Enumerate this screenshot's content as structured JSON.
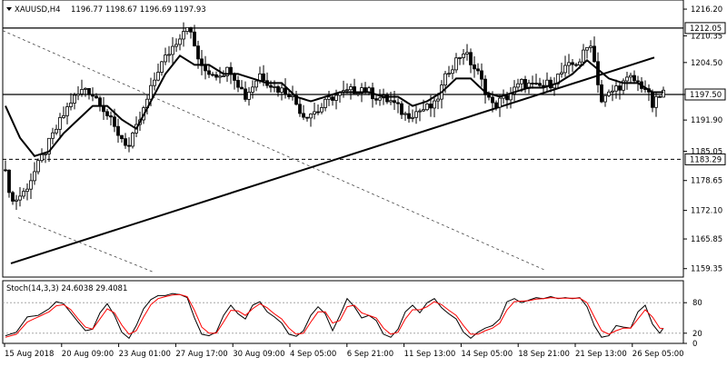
{
  "header": {
    "symbol": "XAUUSD,H4",
    "ohlc": "1196.77 1198.67 1196.69 1197.93"
  },
  "stoch_label": "Stoch(14,3,3) 24.6038 29.4081",
  "chart_data": [
    {
      "type": "candlestick",
      "title": "XAUUSD,H4",
      "ylim": [
        1157.5,
        1218.2
      ],
      "y_ticks": [
        1216.2,
        1210.35,
        1204.5,
        1197.5,
        1191.9,
        1185.05,
        1178.65,
        1172.1,
        1165.85,
        1159.35
      ],
      "price_tags": [
        {
          "value": 1212.05,
          "label": "1212.05",
          "style": "solid"
        },
        {
          "value": 1197.5,
          "label": "1197.50",
          "style": "solid"
        },
        {
          "value": 1183.29,
          "label": "1183.29",
          "style": "dashed"
        }
      ],
      "x_labels": [
        "15 Aug 2018",
        "20 Aug 09:00",
        "23 Aug 01:00",
        "27 Aug 17:00",
        "30 Aug 09:00",
        "4 Sep 05:00",
        "6 Sep 21:00",
        "11 Sep 13:00",
        "14 Sep 05:00",
        "18 Sep 21:00",
        "21 Sep 13:00",
        "26 Sep 05:00"
      ],
      "close_anchors": [
        [
          0,
          1180
        ],
        [
          2,
          1174
        ],
        [
          5,
          1176
        ],
        [
          9,
          1182
        ],
        [
          14,
          1190
        ],
        [
          18,
          1196
        ],
        [
          22,
          1199
        ],
        [
          26,
          1196
        ],
        [
          30,
          1190
        ],
        [
          34,
          1186
        ],
        [
          38,
          1194
        ],
        [
          42,
          1203
        ],
        [
          46,
          1208
        ],
        [
          50,
          1213
        ],
        [
          54,
          1203
        ],
        [
          58,
          1202
        ],
        [
          62,
          1203
        ],
        [
          66,
          1197
        ],
        [
          70,
          1202
        ],
        [
          74,
          1199
        ],
        [
          78,
          1198
        ],
        [
          82,
          1193
        ],
        [
          86,
          1194
        ],
        [
          90,
          1197
        ],
        [
          94,
          1198
        ],
        [
          98,
          1199
        ],
        [
          102,
          1197
        ],
        [
          106,
          1196
        ],
        [
          110,
          1193
        ],
        [
          114,
          1194
        ],
        [
          118,
          1195
        ],
        [
          122,
          1203
        ],
        [
          126,
          1207
        ],
        [
          130,
          1202
        ],
        [
          134,
          1195
        ],
        [
          138,
          1197
        ],
        [
          142,
          1200
        ],
        [
          146,
          1199
        ],
        [
          150,
          1200
        ],
        [
          154,
          1203
        ],
        [
          158,
          1205
        ],
        [
          161,
          1209
        ],
        [
          164,
          1196
        ],
        [
          168,
          1199
        ],
        [
          172,
          1201
        ],
        [
          176,
          1199
        ],
        [
          178,
          1195
        ],
        [
          181,
          1198
        ]
      ],
      "ma_anchors": [
        [
          0,
          1195
        ],
        [
          4,
          1188
        ],
        [
          8,
          1184
        ],
        [
          12,
          1185
        ],
        [
          16,
          1189
        ],
        [
          20,
          1192
        ],
        [
          24,
          1195
        ],
        [
          28,
          1195
        ],
        [
          32,
          1192
        ],
        [
          36,
          1190
        ],
        [
          40,
          1196
        ],
        [
          44,
          1202
        ],
        [
          48,
          1206
        ],
        [
          52,
          1204
        ],
        [
          56,
          1204
        ],
        [
          60,
          1202
        ],
        [
          64,
          1202
        ],
        [
          68,
          1201
        ],
        [
          72,
          1200
        ],
        [
          76,
          1200
        ],
        [
          80,
          1197
        ],
        [
          84,
          1196
        ],
        [
          88,
          1197
        ],
        [
          92,
          1198
        ],
        [
          96,
          1198
        ],
        [
          100,
          1198
        ],
        [
          104,
          1197
        ],
        [
          108,
          1197
        ],
        [
          112,
          1195
        ],
        [
          116,
          1196
        ],
        [
          120,
          1198
        ],
        [
          124,
          1201
        ],
        [
          128,
          1201
        ],
        [
          132,
          1198
        ],
        [
          136,
          1197
        ],
        [
          140,
          1198
        ],
        [
          144,
          1199
        ],
        [
          148,
          1199
        ],
        [
          152,
          1200
        ],
        [
          156,
          1202
        ],
        [
          160,
          1205
        ],
        [
          163,
          1203
        ],
        [
          166,
          1201
        ],
        [
          170,
          1200
        ],
        [
          174,
          1200
        ],
        [
          178,
          1198
        ],
        [
          181,
          1198
        ]
      ]
    },
    {
      "type": "line",
      "title": "Stoch(14,3,3)",
      "ylim": [
        0,
        100
      ],
      "y_ticks": [
        "80",
        "20",
        "0"
      ],
      "levels": [
        80,
        20
      ],
      "series": [
        {
          "name": "main",
          "color": "#000000",
          "anchors": [
            [
              0,
              15
            ],
            [
              3,
              22
            ],
            [
              6,
              52
            ],
            [
              9,
              55
            ],
            [
              12,
              68
            ],
            [
              14,
              82
            ],
            [
              16,
              78
            ],
            [
              18,
              60
            ],
            [
              20,
              42
            ],
            [
              22,
              25
            ],
            [
              24,
              28
            ],
            [
              26,
              60
            ],
            [
              28,
              78
            ],
            [
              30,
              55
            ],
            [
              32,
              22
            ],
            [
              34,
              10
            ],
            [
              36,
              35
            ],
            [
              38,
              68
            ],
            [
              40,
              86
            ],
            [
              42,
              94
            ],
            [
              44,
              94
            ],
            [
              46,
              98
            ],
            [
              48,
              96
            ],
            [
              50,
              90
            ],
            [
              52,
              50
            ],
            [
              54,
              18
            ],
            [
              56,
              15
            ],
            [
              58,
              22
            ],
            [
              60,
              55
            ],
            [
              62,
              75
            ],
            [
              64,
              58
            ],
            [
              66,
              48
            ],
            [
              68,
              75
            ],
            [
              70,
              82
            ],
            [
              72,
              62
            ],
            [
              74,
              52
            ],
            [
              76,
              40
            ],
            [
              78,
              18
            ],
            [
              80,
              14
            ],
            [
              82,
              25
            ],
            [
              84,
              55
            ],
            [
              86,
              72
            ],
            [
              88,
              58
            ],
            [
              90,
              25
            ],
            [
              92,
              55
            ],
            [
              94,
              88
            ],
            [
              96,
              72
            ],
            [
              98,
              50
            ],
            [
              100,
              55
            ],
            [
              102,
              45
            ],
            [
              104,
              18
            ],
            [
              106,
              12
            ],
            [
              108,
              28
            ],
            [
              110,
              62
            ],
            [
              112,
              75
            ],
            [
              114,
              60
            ],
            [
              116,
              80
            ],
            [
              118,
              88
            ],
            [
              120,
              70
            ],
            [
              122,
              58
            ],
            [
              124,
              48
            ],
            [
              126,
              22
            ],
            [
              128,
              10
            ],
            [
              130,
              22
            ],
            [
              132,
              30
            ],
            [
              134,
              35
            ],
            [
              136,
              48
            ],
            [
              138,
              82
            ],
            [
              140,
              88
            ],
            [
              142,
              80
            ],
            [
              144,
              85
            ],
            [
              146,
              90
            ],
            [
              148,
              88
            ],
            [
              150,
              92
            ],
            [
              152,
              88
            ],
            [
              154,
              90
            ],
            [
              156,
              88
            ],
            [
              158,
              90
            ],
            [
              160,
              72
            ],
            [
              162,
              35
            ],
            [
              164,
              12
            ],
            [
              166,
              15
            ],
            [
              168,
              35
            ],
            [
              170,
              32
            ],
            [
              172,
              30
            ],
            [
              174,
              62
            ],
            [
              176,
              75
            ],
            [
              178,
              38
            ],
            [
              180,
              20
            ],
            [
              181,
              30
            ]
          ]
        },
        {
          "name": "signal",
          "color": "#ff0000",
          "anchors": [
            [
              0,
              12
            ],
            [
              3,
              18
            ],
            [
              6,
              42
            ],
            [
              9,
              52
            ],
            [
              12,
              62
            ],
            [
              14,
              74
            ],
            [
              16,
              76
            ],
            [
              18,
              66
            ],
            [
              20,
              48
            ],
            [
              22,
              32
            ],
            [
              24,
              28
            ],
            [
              26,
              48
            ],
            [
              28,
              68
            ],
            [
              30,
              60
            ],
            [
              32,
              36
            ],
            [
              34,
              18
            ],
            [
              36,
              25
            ],
            [
              38,
              52
            ],
            [
              40,
              76
            ],
            [
              42,
              88
            ],
            [
              44,
              92
            ],
            [
              46,
              95
            ],
            [
              48,
              96
            ],
            [
              50,
              92
            ],
            [
              52,
              65
            ],
            [
              54,
              32
            ],
            [
              56,
              20
            ],
            [
              58,
              20
            ],
            [
              60,
              42
            ],
            [
              62,
              65
            ],
            [
              64,
              64
            ],
            [
              66,
              55
            ],
            [
              68,
              68
            ],
            [
              70,
              78
            ],
            [
              72,
              70
            ],
            [
              74,
              58
            ],
            [
              76,
              48
            ],
            [
              78,
              30
            ],
            [
              80,
              18
            ],
            [
              82,
              20
            ],
            [
              84,
              42
            ],
            [
              86,
              62
            ],
            [
              88,
              62
            ],
            [
              90,
              40
            ],
            [
              92,
              45
            ],
            [
              94,
              72
            ],
            [
              96,
              75
            ],
            [
              98,
              60
            ],
            [
              100,
              55
            ],
            [
              102,
              50
            ],
            [
              104,
              30
            ],
            [
              106,
              18
            ],
            [
              108,
              22
            ],
            [
              110,
              48
            ],
            [
              112,
              66
            ],
            [
              114,
              66
            ],
            [
              116,
              72
            ],
            [
              118,
              82
            ],
            [
              120,
              76
            ],
            [
              122,
              65
            ],
            [
              124,
              55
            ],
            [
              126,
              35
            ],
            [
              128,
              18
            ],
            [
              130,
              18
            ],
            [
              132,
              25
            ],
            [
              134,
              30
            ],
            [
              136,
              40
            ],
            [
              138,
              66
            ],
            [
              140,
              82
            ],
            [
              142,
              83
            ],
            [
              144,
              84
            ],
            [
              146,
              87
            ],
            [
              148,
              88
            ],
            [
              150,
              90
            ],
            [
              152,
              89
            ],
            [
              154,
              89
            ],
            [
              156,
              89
            ],
            [
              158,
              89
            ],
            [
              160,
              80
            ],
            [
              162,
              52
            ],
            [
              164,
              25
            ],
            [
              166,
              18
            ],
            [
              168,
              25
            ],
            [
              170,
              30
            ],
            [
              172,
              30
            ],
            [
              174,
              48
            ],
            [
              176,
              66
            ],
            [
              178,
              52
            ],
            [
              180,
              30
            ],
            [
              181,
              29
            ]
          ]
        }
      ]
    }
  ]
}
